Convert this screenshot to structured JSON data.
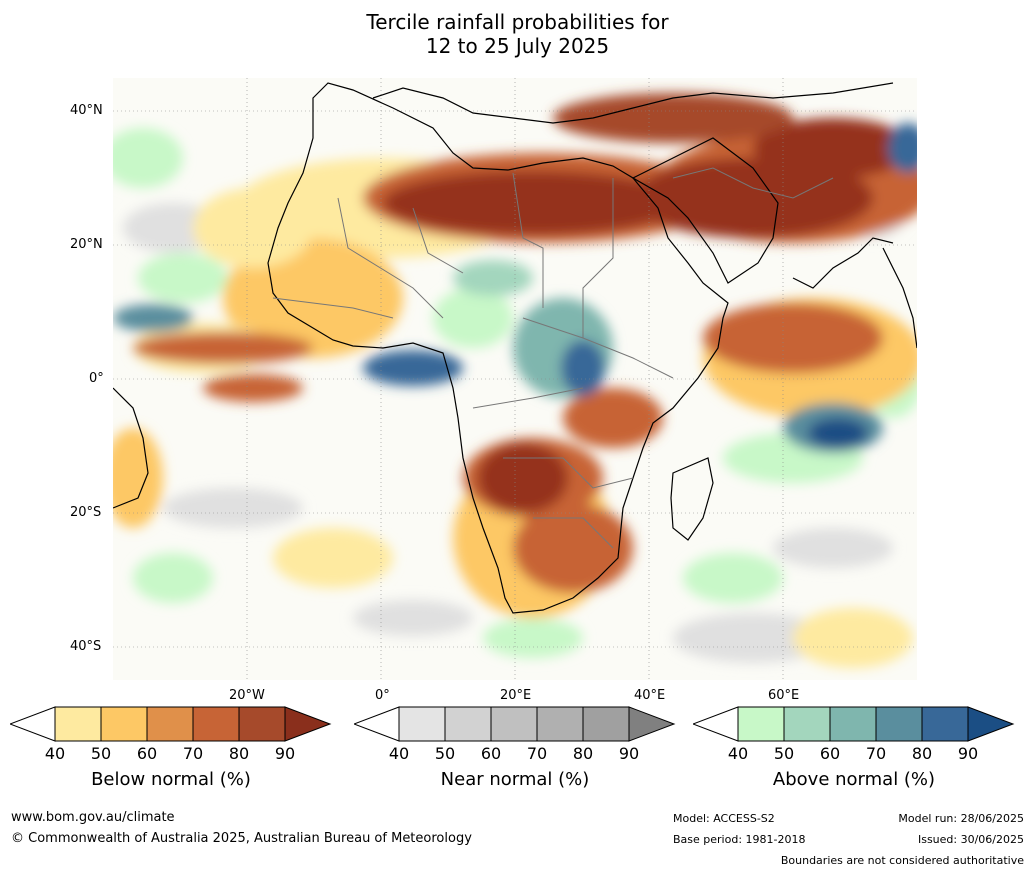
{
  "title": {
    "line1": "Tercile rainfall probabilities for",
    "line2": "12 to 25 July 2025"
  },
  "map": {
    "lat_labels": [
      "40°N",
      "20°N",
      "0°",
      "20°S",
      "40°S"
    ],
    "lon_labels": [
      "20°W",
      "0°",
      "20°E",
      "40°E",
      "60°E"
    ]
  },
  "colorbars": [
    {
      "title": "Below normal (%)",
      "ticks": [
        "40",
        "50",
        "60",
        "70",
        "80",
        "90"
      ],
      "colors": [
        "#ffffff",
        "#feeaa0",
        "#fdc865",
        "#e0904a",
        "#c76436",
        "#a64a2b",
        "#8a2f1c"
      ]
    },
    {
      "title": "Near normal (%)",
      "ticks": [
        "40",
        "50",
        "60",
        "70",
        "80",
        "90"
      ],
      "colors": [
        "#ffffff",
        "#e4e4e4",
        "#d2d2d2",
        "#c0c0c0",
        "#b0b0b0",
        "#a0a0a0",
        "#808080"
      ]
    },
    {
      "title": "Above normal (%)",
      "ticks": [
        "40",
        "50",
        "60",
        "70",
        "80",
        "90"
      ],
      "colors": [
        "#ffffff",
        "#c8f8c8",
        "#a3d6bd",
        "#7fb6ae",
        "#5a8e9e",
        "#386898",
        "#1b4e84"
      ]
    }
  ],
  "footer": {
    "website": "www.bom.gov.au/climate",
    "copyright": "© Commonwealth of Australia 2025, Australian Bureau of Meteorology",
    "model": "Model: ACCESS-S2",
    "base_period": "Base period: 1981-2018",
    "model_run": "Model run: 28/06/2025",
    "issued": "Issued: 30/06/2025",
    "disclaimer": "Boundaries are not considered authoritative"
  }
}
